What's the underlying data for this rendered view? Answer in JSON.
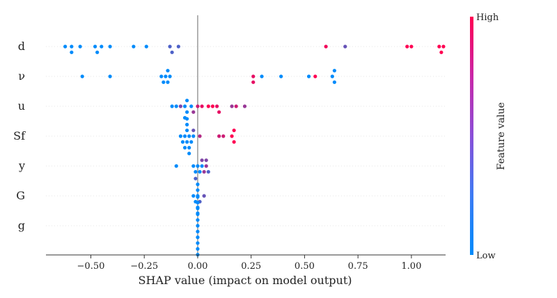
{
  "chart_data": {
    "type": "scatter",
    "subtype": "shap-beeswarm",
    "xlabel": "SHAP value (impact on model output)",
    "xlim": [
      -0.71,
      1.16
    ],
    "x_ticks": [
      -0.5,
      -0.25,
      0.0,
      0.25,
      0.5,
      0.75,
      1.0
    ],
    "x_tick_labels": [
      "−0.50",
      "−0.25",
      "0.00",
      "0.25",
      "0.50",
      "0.75",
      "1.00"
    ],
    "zero_line": 0.0,
    "grid": false,
    "colorbar": {
      "title": "Feature value",
      "high_label": "High",
      "low_label": "Low",
      "low_color": "#008bfb",
      "high_color": "#ff0052",
      "placement": "right"
    },
    "features": [
      {
        "name": "d",
        "points": [
          {
            "x": -0.62,
            "v": 0.0
          },
          {
            "x": -0.59,
            "v": 0.0
          },
          {
            "x": -0.59,
            "v": 0.0
          },
          {
            "x": -0.55,
            "v": 0.0
          },
          {
            "x": -0.48,
            "v": 0.0
          },
          {
            "x": -0.47,
            "v": 0.0
          },
          {
            "x": -0.45,
            "v": 0.0
          },
          {
            "x": -0.41,
            "v": 0.0
          },
          {
            "x": -0.3,
            "v": 0.0
          },
          {
            "x": -0.24,
            "v": 0.0
          },
          {
            "x": -0.13,
            "v": 0.3
          },
          {
            "x": -0.12,
            "v": 0.3
          },
          {
            "x": -0.09,
            "v": 0.3
          },
          {
            "x": 0.6,
            "v": 0.95
          },
          {
            "x": 0.69,
            "v": 0.4
          },
          {
            "x": 0.98,
            "v": 1.0
          },
          {
            "x": 1.0,
            "v": 1.0
          },
          {
            "x": 1.13,
            "v": 1.0
          },
          {
            "x": 1.14,
            "v": 1.0
          },
          {
            "x": 1.15,
            "v": 1.0
          }
        ]
      },
      {
        "name": "ν",
        "points": [
          {
            "x": -0.54,
            "v": 0.0
          },
          {
            "x": -0.41,
            "v": 0.0
          },
          {
            "x": -0.17,
            "v": 0.0
          },
          {
            "x": -0.16,
            "v": 0.0
          },
          {
            "x": -0.15,
            "v": 0.0
          },
          {
            "x": -0.14,
            "v": 0.0
          },
          {
            "x": -0.14,
            "v": 0.0
          },
          {
            "x": -0.13,
            "v": 0.0
          },
          {
            "x": 0.26,
            "v": 0.9
          },
          {
            "x": 0.26,
            "v": 0.9
          },
          {
            "x": 0.3,
            "v": 0.0
          },
          {
            "x": 0.39,
            "v": 0.0
          },
          {
            "x": 0.52,
            "v": 0.0
          },
          {
            "x": 0.55,
            "v": 1.0
          },
          {
            "x": 0.63,
            "v": 0.0
          },
          {
            "x": 0.64,
            "v": 0.0
          },
          {
            "x": 0.64,
            "v": 0.0
          }
        ]
      },
      {
        "name": "u",
        "points": [
          {
            "x": -0.12,
            "v": 0.0
          },
          {
            "x": -0.1,
            "v": 0.0
          },
          {
            "x": -0.08,
            "v": 0.5
          },
          {
            "x": -0.06,
            "v": 0.0
          },
          {
            "x": -0.05,
            "v": 0.0
          },
          {
            "x": -0.03,
            "v": 0.0
          },
          {
            "x": -0.02,
            "v": 0.6
          },
          {
            "x": 0.0,
            "v": 0.8
          },
          {
            "x": 0.02,
            "v": 0.9
          },
          {
            "x": 0.05,
            "v": 1.0
          },
          {
            "x": 0.07,
            "v": 1.0
          },
          {
            "x": 0.09,
            "v": 0.9
          },
          {
            "x": 0.1,
            "v": 0.9
          },
          {
            "x": 0.16,
            "v": 0.6
          },
          {
            "x": 0.18,
            "v": 0.8
          },
          {
            "x": 0.22,
            "v": 0.6
          },
          {
            "x": -0.05,
            "v": 0.0
          },
          {
            "x": -0.06,
            "v": 0.0
          }
        ]
      },
      {
        "name": "Sf",
        "points": [
          {
            "x": -0.08,
            "v": 0.0
          },
          {
            "x": -0.07,
            "v": 0.0
          },
          {
            "x": -0.06,
            "v": 0.0
          },
          {
            "x": -0.05,
            "v": 0.0
          },
          {
            "x": -0.05,
            "v": 0.0
          },
          {
            "x": -0.04,
            "v": 0.0
          },
          {
            "x": -0.04,
            "v": 0.0
          },
          {
            "x": -0.03,
            "v": 0.0
          },
          {
            "x": -0.02,
            "v": 0.0
          },
          {
            "x": -0.05,
            "v": 0.0
          },
          {
            "x": -0.06,
            "v": 0.0
          },
          {
            "x": -0.04,
            "v": 0.0
          },
          {
            "x": -0.05,
            "v": 0.0
          },
          {
            "x": -0.02,
            "v": 0.4
          },
          {
            "x": 0.01,
            "v": 0.7
          },
          {
            "x": 0.1,
            "v": 0.8
          },
          {
            "x": 0.12,
            "v": 0.8
          },
          {
            "x": 0.16,
            "v": 1.0
          },
          {
            "x": 0.17,
            "v": 1.0
          },
          {
            "x": 0.17,
            "v": 1.0
          }
        ]
      },
      {
        "name": "y",
        "points": [
          {
            "x": -0.1,
            "v": 0.0
          },
          {
            "x": -0.02,
            "v": 0.0
          },
          {
            "x": -0.01,
            "v": 0.0
          },
          {
            "x": 0.0,
            "v": 0.0
          },
          {
            "x": 0.01,
            "v": 0.0
          },
          {
            "x": 0.02,
            "v": 0.0
          },
          {
            "x": 0.03,
            "v": 0.6
          },
          {
            "x": 0.04,
            "v": 0.6
          },
          {
            "x": 0.04,
            "v": 0.5
          },
          {
            "x": 0.05,
            "v": 0.3
          },
          {
            "x": 0.02,
            "v": 0.5
          }
        ]
      },
      {
        "name": "G",
        "points": [
          {
            "x": -0.02,
            "v": 0.0
          },
          {
            "x": -0.01,
            "v": 0.0
          },
          {
            "x": 0.0,
            "v": 0.0
          },
          {
            "x": 0.0,
            "v": 0.0
          },
          {
            "x": 0.01,
            "v": 0.3
          },
          {
            "x": 0.03,
            "v": 0.4
          },
          {
            "x": 0.0,
            "v": 0.0
          },
          {
            "x": 0.0,
            "v": 0.0
          },
          {
            "x": 0.0,
            "v": 0.0
          },
          {
            "x": -0.01,
            "v": 0.3
          }
        ]
      },
      {
        "name": "g",
        "points": [
          {
            "x": 0.0,
            "v": 0.0
          },
          {
            "x": 0.0,
            "v": 0.0
          },
          {
            "x": 0.0,
            "v": 0.0
          },
          {
            "x": 0.0,
            "v": 0.0
          },
          {
            "x": 0.0,
            "v": 0.0
          },
          {
            "x": 0.0,
            "v": 0.0
          },
          {
            "x": 0.0,
            "v": 0.0
          },
          {
            "x": 0.0,
            "v": 0.0
          },
          {
            "x": 0.0,
            "v": 0.0
          },
          {
            "x": 0.0,
            "v": 0.0
          },
          {
            "x": 0.0,
            "v": 0.0
          },
          {
            "x": 0.0,
            "v": 0.0
          }
        ]
      }
    ]
  }
}
